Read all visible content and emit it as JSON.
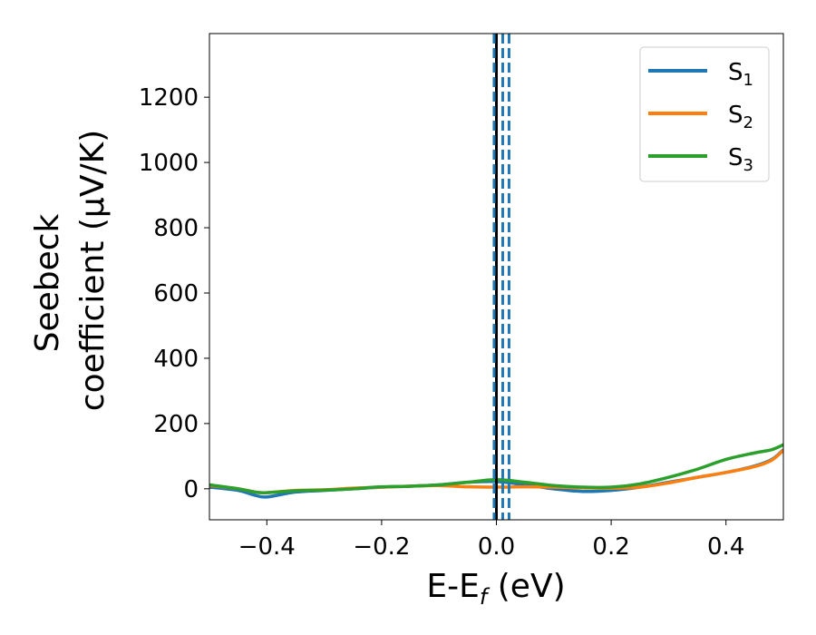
{
  "chart_data": {
    "type": "line",
    "xlabel": {
      "main": "E-E",
      "sub": "f",
      "unit": " (eV)"
    },
    "ylabel": {
      "line1": "Seebeck",
      "line2": "coefficient  (μV/K)"
    },
    "xlim": [
      -0.5,
      0.5
    ],
    "ylim": [
      -95,
      1395
    ],
    "xticks": [
      -0.4,
      -0.2,
      0.0,
      0.2,
      0.4
    ],
    "xtick_labels": [
      "−0.4",
      "−0.2",
      "0.0",
      "0.2",
      "0.4"
    ],
    "yticks": [
      0,
      200,
      400,
      600,
      800,
      1000,
      1200
    ],
    "ytick_labels": [
      "0",
      "200",
      "400",
      "600",
      "800",
      "1000",
      "1200"
    ],
    "grid": false,
    "legend_position": "top-right",
    "vlines": [
      {
        "x": 0.0,
        "color": "#000000",
        "style": "solid"
      },
      {
        "x": -0.004,
        "color": "#1f77b4",
        "style": "dashed"
      },
      {
        "x": 0.011,
        "color": "#1f77b4",
        "style": "dashed"
      },
      {
        "x": 0.022,
        "color": "#1f77b4",
        "style": "dashed"
      }
    ],
    "series": [
      {
        "name_main": "S",
        "name_sub": "1",
        "color": "#1f77b4",
        "x": [
          -0.5,
          -0.45,
          -0.42,
          -0.4,
          -0.35,
          -0.3,
          -0.25,
          -0.2,
          -0.15,
          -0.1,
          -0.05,
          0.0,
          0.05,
          0.1,
          0.15,
          0.2,
          0.25,
          0.3,
          0.35,
          0.4,
          0.45,
          0.48,
          0.5
        ],
        "y": [
          5,
          -5,
          -20,
          -25,
          -10,
          -5,
          0,
          5,
          8,
          12,
          20,
          22,
          12,
          0,
          -8,
          -5,
          5,
          20,
          35,
          50,
          70,
          90,
          120
        ]
      },
      {
        "name_main": "S",
        "name_sub": "2",
        "color": "#ff7f0e",
        "x": [
          -0.5,
          -0.45,
          -0.42,
          -0.4,
          -0.35,
          -0.3,
          -0.25,
          -0.2,
          -0.15,
          -0.1,
          -0.05,
          0.0,
          0.05,
          0.1,
          0.15,
          0.2,
          0.25,
          0.3,
          0.35,
          0.4,
          0.45,
          0.48,
          0.5
        ],
        "y": [
          10,
          0,
          -10,
          -12,
          -5,
          -3,
          2,
          5,
          8,
          10,
          6,
          5,
          6,
          5,
          3,
          2,
          5,
          18,
          35,
          50,
          68,
          88,
          118
        ]
      },
      {
        "name_main": "S",
        "name_sub": "3",
        "color": "#2ca02c",
        "x": [
          -0.5,
          -0.45,
          -0.42,
          -0.4,
          -0.35,
          -0.3,
          -0.25,
          -0.2,
          -0.15,
          -0.1,
          -0.05,
          0.0,
          0.05,
          0.1,
          0.15,
          0.2,
          0.25,
          0.3,
          0.35,
          0.4,
          0.45,
          0.48,
          0.5
        ],
        "y": [
          12,
          0,
          -10,
          -12,
          -6,
          -4,
          0,
          6,
          8,
          12,
          20,
          28,
          20,
          10,
          5,
          5,
          15,
          35,
          60,
          90,
          110,
          120,
          135
        ]
      }
    ]
  }
}
